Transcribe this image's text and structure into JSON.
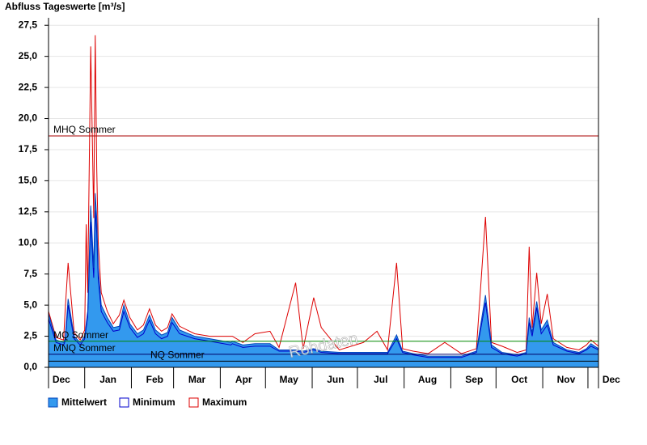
{
  "chart_data": {
    "type": "area",
    "title": "Abfluss Tageswerte [m³/s]",
    "watermark": "Rohdaten",
    "x": [
      0,
      5,
      10,
      11,
      13,
      17,
      21,
      24,
      25,
      26,
      28,
      30,
      31,
      32,
      33,
      35,
      39,
      43,
      47,
      50,
      54,
      59,
      63,
      67,
      71,
      75,
      79,
      82,
      87,
      97,
      107,
      121,
      122,
      129,
      137,
      147,
      153,
      164,
      169,
      176,
      181,
      193,
      209,
      218,
      225,
      231,
      235,
      242,
      252,
      263,
      274,
      284,
      290,
      294,
      301,
      311,
      317,
      319,
      321,
      324,
      327,
      331,
      335,
      344,
      352,
      357,
      360,
      365
    ],
    "series": [
      {
        "name": "Mittelwert",
        "color": "#3399ee",
        "values": [
          4.3,
          2.2,
          2.0,
          2.3,
          5.5,
          2.5,
          2.0,
          2.5,
          3.5,
          4.5,
          13,
          8,
          14,
          12,
          8,
          5,
          4,
          3.2,
          3.3,
          5,
          3.5,
          2.7,
          3.0,
          4.2,
          3.0,
          2.6,
          2.8,
          4.0,
          3.0,
          2.5,
          2.3,
          2.0,
          2.1,
          1.8,
          1.9,
          1.9,
          1.4,
          1.4,
          1.3,
          1.5,
          1.3,
          1.2,
          1.2,
          1.2,
          1.2,
          2.6,
          1.3,
          1.1,
          0.9,
          0.9,
          0.9,
          1.3,
          5.8,
          1.8,
          1.2,
          1.0,
          1.2,
          4.0,
          2.8,
          5.3,
          3.0,
          3.8,
          2.0,
          1.4,
          1.2,
          1.5,
          1.9,
          1.5
        ]
      },
      {
        "name": "Minimum",
        "color": "#0000cc",
        "values": [
          3.9,
          2.0,
          1.8,
          2.1,
          5.0,
          2.3,
          1.8,
          2.3,
          3.2,
          4.1,
          11.7,
          7.2,
          12.6,
          10.8,
          7.2,
          4.5,
          3.6,
          2.9,
          3.0,
          4.5,
          3.2,
          2.4,
          2.7,
          3.8,
          2.7,
          2.3,
          2.5,
          3.6,
          2.7,
          2.3,
          2.1,
          1.8,
          1.9,
          1.6,
          1.7,
          1.7,
          1.3,
          1.3,
          1.2,
          1.4,
          1.2,
          1.1,
          1.1,
          1.1,
          1.1,
          2.3,
          1.2,
          1.0,
          0.8,
          0.8,
          0.8,
          1.2,
          5.2,
          1.6,
          1.1,
          0.9,
          1.1,
          3.6,
          2.5,
          4.8,
          2.7,
          3.4,
          1.8,
          1.3,
          1.1,
          1.4,
          1.7,
          1.4
        ]
      },
      {
        "name": "Maximum",
        "color": "#dd0000",
        "values": [
          4.5,
          2.4,
          2.2,
          4.5,
          8.4,
          2.8,
          2.2,
          3.0,
          11.5,
          6.0,
          25.8,
          12,
          26.7,
          16,
          10,
          6,
          4.5,
          3.5,
          4.2,
          5.4,
          4.0,
          3.0,
          3.4,
          4.7,
          3.4,
          2.9,
          3.2,
          4.3,
          3.3,
          2.7,
          2.5,
          2.5,
          2.5,
          2.0,
          2.7,
          2.9,
          1.6,
          6.8,
          1.5,
          5.6,
          3.2,
          1.4,
          2.0,
          2.9,
          1.4,
          8.4,
          1.5,
          1.3,
          1.1,
          2.0,
          1.1,
          1.5,
          12.1,
          2.0,
          1.7,
          1.2,
          1.4,
          9.7,
          3.2,
          7.6,
          3.5,
          5.9,
          2.3,
          1.6,
          1.4,
          1.8,
          2.2,
          1.7
        ]
      }
    ],
    "reference_lines": [
      {
        "label": "MHQ Sommer",
        "value": 18.6,
        "color": "#aa0000"
      },
      {
        "label": "MQ Sommer",
        "value": 2.1,
        "color": "#008800"
      },
      {
        "label": "MNQ Sommer",
        "value": 1.05,
        "color": "#000066"
      },
      {
        "label": "NQ Sommer",
        "value": 0.5,
        "color": "#000000"
      }
    ],
    "xlim": [
      0,
      365
    ],
    "xticks": [
      {
        "value": -7,
        "label": "Dec"
      },
      {
        "value": 24,
        "label": "Jan"
      },
      {
        "value": 55,
        "label": "Feb"
      },
      {
        "value": 83,
        "label": "Mar"
      },
      {
        "value": 114,
        "label": "Apr"
      },
      {
        "value": 144,
        "label": "May"
      },
      {
        "value": 175,
        "label": "Jun"
      },
      {
        "value": 205,
        "label": "Jul"
      },
      {
        "value": 236,
        "label": "Aug"
      },
      {
        "value": 267,
        "label": "Sep"
      },
      {
        "value": 297,
        "label": "Oct"
      },
      {
        "value": 328,
        "label": "Nov"
      },
      {
        "value": 358,
        "label": "Dec"
      }
    ],
    "ylim": [
      0,
      28.1
    ],
    "yticks": [
      {
        "value": 0,
        "label": "0,0"
      },
      {
        "value": 2.5,
        "label": "2,5"
      },
      {
        "value": 5,
        "label": "5,0"
      },
      {
        "value": 7.5,
        "label": "7,5"
      },
      {
        "value": 10,
        "label": "10,0"
      },
      {
        "value": 12.5,
        "label": "12,5"
      },
      {
        "value": 15,
        "label": "15,0"
      },
      {
        "value": 17.5,
        "label": "17,5"
      },
      {
        "value": 20,
        "label": "20,0"
      },
      {
        "value": 22.5,
        "label": "22,5"
      },
      {
        "value": 25,
        "label": "25,0"
      },
      {
        "value": 27.5,
        "label": "27,5"
      }
    ],
    "grid": true
  }
}
